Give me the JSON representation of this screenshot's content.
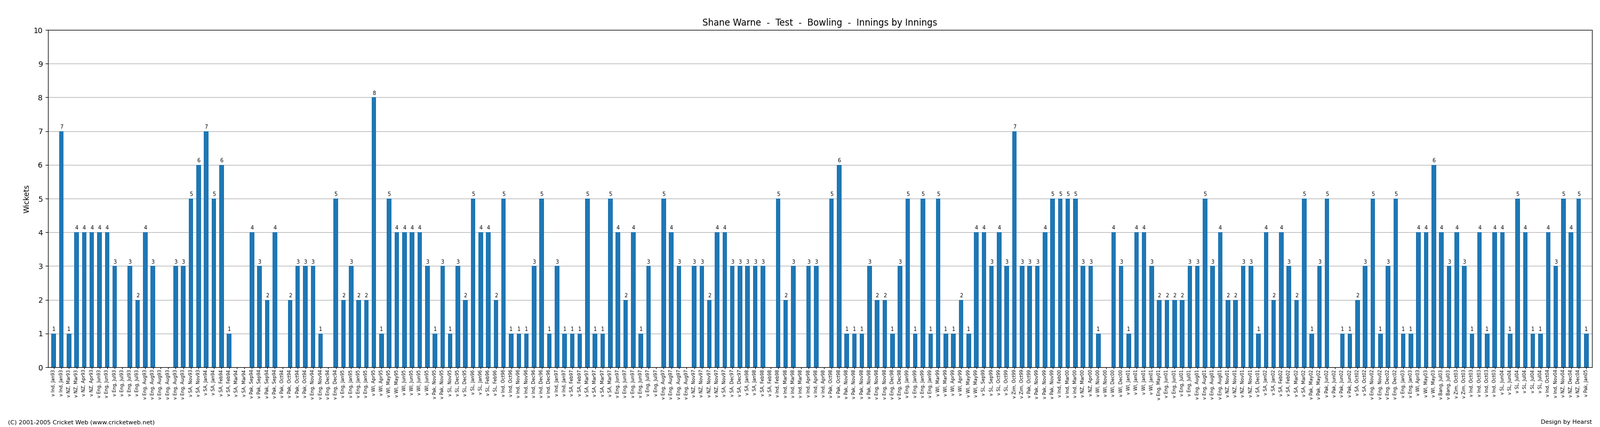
{
  "chart_data": {
    "type": "bar",
    "title": "Shane Warne  -  Test  -  Bowling  -  Innings by Innings",
    "y_label": "Wickets",
    "annotations": [
      "(C) 2001-2005 Cricket Web (www.cricketweb.net)",
      "Design by Hearst"
    ],
    "ylim": [
      0,
      10
    ],
    "yticks": [
      0,
      1,
      2,
      3,
      4,
      5,
      6,
      7,
      8,
      9,
      10
    ],
    "grid": true,
    "data_labels": true,
    "categories": [
      "v Ind, Jan93",
      "v Ind, Jan93",
      "v NZ, Mar93",
      "v NZ, Mar93",
      "v NZ, Apr93",
      "v NZ, Apr93",
      "v Eng, Jun93",
      "v Eng, Jun93",
      "v Eng, Jul93",
      "v Eng, Jul93",
      "v Eng, Jul93",
      "v Eng, Jul93",
      "v Eng, Aug93",
      "v Eng, Aug93",
      "v Eng, Aug93",
      "v Eng, Aug93",
      "v Eng, Aug93",
      "v Eng, Aug93",
      "v SA, Nov93",
      "v SA, Nov93",
      "v SA, Jan94",
      "v SA, Jan94",
      "v SA, Feb94",
      "v SA, Feb94",
      "v SA, Mar94",
      "v SA, Mar94",
      "v Pak, Sep94",
      "v Pak, Sep94",
      "v Pak, Sep94",
      "v Pak, Sep94",
      "v Pak, Oct94",
      "v Pak, Oct94",
      "v Pak, Oct94",
      "v Pak, Oct94",
      "v Eng, Nov94",
      "v Eng, Nov94",
      "v Eng, Dec94",
      "v Eng, Dec94",
      "v Eng, Jan95",
      "v Eng, Jan95",
      "v Eng, Jan95",
      "v Eng, Jan95",
      "v WI, Apr95",
      "v WI, Apr95",
      "v WI, May95",
      "v WI, May95",
      "v WI, Jun95",
      "v WI, Jun95",
      "v WI, Jun95",
      "v WI, Jun95",
      "v Pak, Nov95",
      "v Pak, Nov95",
      "v SL, Nov95",
      "v SL, Dec95",
      "v SL, Dec95",
      "v SL, Jan96",
      "v SL, Jan96",
      "v SL, Feb96",
      "v SL, Feb96",
      "v Ind, Oct96",
      "v Ind, Oct96",
      "v Ind, Nov96",
      "v Ind, Nov96",
      "v Ind, Dec96",
      "v Ind, Dec96",
      "v Ind, Dec96",
      "v Ind, Jan97",
      "v Ind, Jan97",
      "v SA, Feb97",
      "v SA, Feb97",
      "v SA, Mar97",
      "v SA, Mar97",
      "v SA, Mar97",
      "v SA, Mar97",
      "v Eng, Jun97",
      "v Eng, Jun97",
      "v Eng, Jun97",
      "v Eng, Jun97",
      "v Eng, Jul97",
      "v Eng, Jul97",
      "v Eng, Aug97",
      "v Eng, Aug97",
      "v Eng, Aug97",
      "v Eng, Aug97",
      "v NZ, Nov97",
      "v NZ, Nov97",
      "v NZ, Nov97",
      "v NZ, Nov97",
      "v SA, Nov97",
      "v SA, Dec97",
      "v SA, Dec97",
      "v SA, Jan98",
      "v SA, Jan98",
      "v SA, Feb98",
      "v SA, Feb98",
      "v Ind, Feb98",
      "v Ind, Mar98",
      "v Ind, Mar98",
      "v Ind, Mar98",
      "v Ind, Apr98",
      "v Ind, Apr98",
      "v Ind, Apr98",
      "v Pak, Oct98",
      "v Pak, Oct98",
      "v Pak, Nov98",
      "v Pak, Nov98",
      "v Pak, Nov98",
      "v Pak, Nov98",
      "v Eng, Nov98",
      "v Eng, Nov98",
      "v Eng, Dec98",
      "v Eng, Dec98",
      "v Eng, Jan99",
      "v Eng, Jan99",
      "v Eng, Jan99",
      "v Eng, Jan99",
      "v WI, Mar99",
      "v WI, Mar99",
      "v WI, Apr99",
      "v WI, Apr99",
      "v WI, May99",
      "v WI, May99",
      "v SL, Sep99",
      "v SL, Sep99",
      "v SL, Oct99",
      "v SL, Oct99",
      "v Zim, Oct99",
      "v Zim, Oct99",
      "v Pak, Oct99",
      "v Pak, Nov99",
      "v Pak, Nov99",
      "v Pak, Nov99",
      "v Ind, Feb00",
      "v Ind, Mar00",
      "v Ind, Mar00",
      "v NZ, Mar00",
      "v NZ, Apr00",
      "v WI, Nov00",
      "v WI, Nov00",
      "v WI, Dec00",
      "v WI, Dec00",
      "v WI, Jan01",
      "v WI, Jan01",
      "v WI, Jan01",
      "v WI, Jan01",
      "v Eng, May01",
      "v Eng, Jun01",
      "v Eng, Jun01",
      "v Eng, Jul01",
      "v Eng, Jul01",
      "v Eng, Aug01",
      "v Eng, Aug01",
      "v Eng, Aug01",
      "v Eng, Aug01",
      "v NZ, Nov01",
      "v NZ, Nov01",
      "v NZ, Nov01",
      "v NZ, Nov01",
      "v SA, Dec01",
      "v SA, Jan02",
      "v SA, Jan02",
      "v SA, Feb02",
      "v SA, Feb02",
      "v SA, Mar02",
      "v SA, Mar02",
      "v Pak, May02",
      "v Pak, May02",
      "v Pak, Jun02",
      "v Pak, Jun02",
      "v Pak, Jun02",
      "v Pak, Jun02",
      "v SA, Oct02",
      "v SA, Oct02",
      "v Eng, Nov02",
      "v Eng, Nov02",
      "v Eng, Dec02",
      "v Eng, Dec02",
      "v Eng, Jan03",
      "v Eng, Jan03",
      "v WI, Apr03",
      "v WI, May03",
      "v WI, May03",
      "v Bang, Jul03",
      "v Bang, Jul03",
      "v Zim, Oct03",
      "v Zim, Oct03",
      "v Ind, Oct03",
      "v Ind, Oct03",
      "v Ind, Oct03",
      "v Ind, Oct03",
      "v SL, Jun04",
      "v SL, Jun04",
      "v SL, Jul04",
      "v SL, Jul04",
      "v SL, Jul04",
      "v SL, Jul04",
      "v Ind, Oct04",
      "v Ind, Nov04",
      "v NZ, Nov04",
      "v NZ, Dec04",
      "v NZ, Dec04",
      "v Pak, Jan05"
    ],
    "values": [
      1,
      7,
      1,
      4,
      4,
      4,
      4,
      4,
      3,
      0,
      3,
      2,
      4,
      3,
      0,
      0,
      3,
      3,
      5,
      6,
      7,
      5,
      6,
      1,
      0,
      0,
      4,
      3,
      2,
      4,
      0,
      2,
      3,
      3,
      3,
      1,
      0,
      5,
      2,
      3,
      2,
      2,
      8,
      1,
      5,
      4,
      4,
      4,
      4,
      3,
      1,
      3,
      1,
      3,
      2,
      5,
      4,
      4,
      2,
      5,
      1,
      1,
      1,
      3,
      5,
      1,
      3,
      1,
      1,
      1,
      5,
      1,
      1,
      5,
      4,
      2,
      4,
      1,
      3,
      0,
      5,
      4,
      3,
      0,
      3,
      3,
      2,
      4,
      4,
      3,
      3,
      3,
      3,
      3,
      0,
      5,
      2,
      3,
      0,
      3,
      3,
      0,
      5,
      6,
      1,
      1,
      1,
      3,
      2,
      2,
      1,
      3,
      5,
      1,
      5,
      1,
      5,
      1,
      1,
      2,
      1,
      4,
      4,
      3,
      4,
      3,
      7,
      3,
      3,
      3,
      4,
      5,
      5,
      5,
      5,
      3,
      3,
      1,
      0,
      4,
      3,
      1,
      4,
      4,
      3,
      2,
      2,
      2,
      2,
      3,
      3,
      5,
      3,
      4,
      2,
      2,
      3,
      3,
      1,
      4,
      2,
      4,
      3,
      2,
      5,
      1,
      3,
      5,
      0,
      1,
      1,
      2,
      3,
      5,
      1,
      3,
      5,
      1,
      1,
      4,
      4,
      6,
      4,
      3,
      4,
      3,
      1,
      4,
      1,
      4,
      4,
      1,
      5,
      4,
      1,
      1,
      4,
      3,
      5,
      4,
      5,
      1
    ],
    "value_labels": [
      "1",
      "7",
      "1",
      "4",
      "4",
      "4",
      "4",
      "4",
      "3",
      null,
      "3",
      "2",
      "4",
      "3",
      null,
      null,
      "3",
      "3",
      "5",
      "6",
      "7",
      "5",
      "6",
      "1",
      null,
      null,
      "4",
      "3",
      "2",
      "4",
      null,
      "2",
      "3",
      "3",
      "3",
      "1",
      null,
      "5",
      "2",
      "3",
      "2",
      "2",
      "8",
      "1",
      "5",
      "4",
      "4",
      "4",
      "4",
      "3",
      "1",
      "3",
      "1",
      "3",
      "2",
      "5",
      "4",
      "4",
      "2",
      "5",
      "1",
      "1",
      "1",
      "3",
      "5",
      "1",
      "3",
      "1",
      "1",
      "1",
      "5",
      "1",
      "1",
      "5",
      "4",
      "2",
      "4",
      "1",
      "3",
      null,
      "5",
      "4",
      "3",
      null,
      "3",
      "3",
      "2",
      "4",
      "4",
      "3",
      "3",
      "3",
      "3",
      "3",
      null,
      "5",
      "2",
      "3",
      null,
      "3",
      "3",
      null,
      "5",
      "6",
      "1",
      "1",
      "1",
      "3",
      "2",
      "2",
      "1",
      "3",
      "5",
      "1",
      "5",
      "1",
      "5",
      "1",
      "1",
      "2",
      "1",
      "4",
      "4",
      "3",
      "4",
      "3",
      "7",
      "3",
      "3",
      "3",
      "4",
      "5",
      "5",
      "5",
      "5",
      "3",
      "3",
      "1",
      null,
      "4",
      "3",
      "1",
      "4",
      "4",
      "3",
      "2",
      "2",
      "2",
      "2",
      "3",
      "3",
      "5",
      "3",
      "4",
      "2",
      "2",
      "3",
      "3",
      "1",
      "4",
      "2",
      "4",
      "3",
      "2",
      "5",
      "1",
      "3",
      "5",
      null,
      "1",
      "1",
      "2",
      "3",
      "5",
      "1",
      "3",
      "5",
      "1",
      "1",
      "4",
      "4",
      "6",
      "4",
      "3",
      "4",
      "3",
      "1",
      "4",
      "1",
      "4",
      "4",
      "1",
      "5",
      "4",
      "1",
      "1",
      "4",
      "3",
      "5",
      "4",
      "5",
      "1"
    ]
  }
}
